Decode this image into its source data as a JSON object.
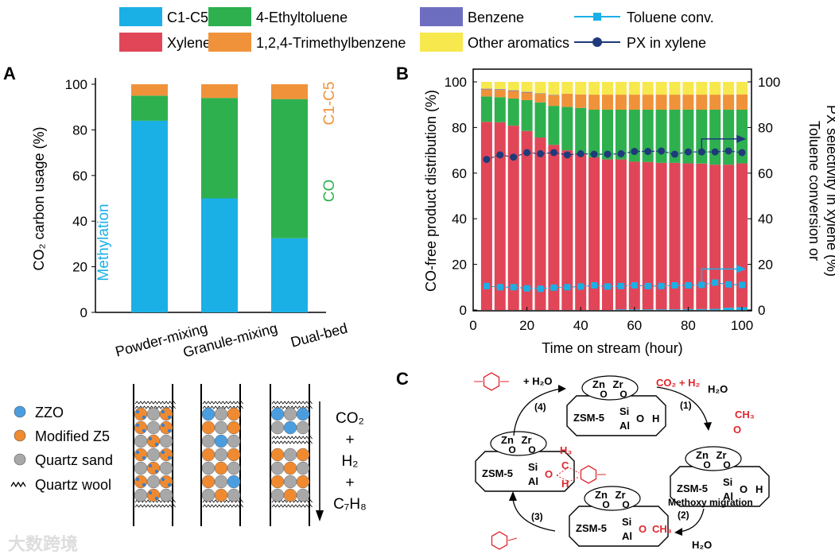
{
  "legend": {
    "items": [
      {
        "label": "C1-C5",
        "kind": "bar",
        "color": "#1ab0e6"
      },
      {
        "label": "4-Ethyltoluene",
        "kind": "bar",
        "color": "#2eb04f"
      },
      {
        "label": "Benzene",
        "kind": "bar",
        "color": "#6e6ec0"
      },
      {
        "label": "Toluene conv.",
        "kind": "line-square",
        "color": "#1ab0e6"
      },
      {
        "label": "Xylene",
        "kind": "bar",
        "color": "#e04658"
      },
      {
        "label": "1,2,4-Trimethylbenzene",
        "kind": "bar",
        "color": "#f0923a"
      },
      {
        "label": "Other aromatics",
        "kind": "bar",
        "color": "#f7e84e"
      },
      {
        "label": "PX in xylene",
        "kind": "line-circle",
        "color": "#1f3a7a"
      }
    ]
  },
  "chart_data": [
    {
      "panel": "A",
      "type": "bar",
      "stacked": true,
      "ylabel": "CO₂ carbon usage (%)",
      "ylim": [
        0,
        100
      ],
      "yticks": [
        0,
        20,
        40,
        60,
        80,
        100
      ],
      "categories": [
        "Powder-mixing",
        "Granule-mixing",
        "Dual-bed"
      ],
      "series": [
        {
          "name": "Methylation",
          "color": "#1ab0e6",
          "values": [
            84,
            50,
            32.5
          ]
        },
        {
          "name": "CO",
          "color": "#2eb04f",
          "values": [
            11,
            44,
            61
          ]
        },
        {
          "name": "C1-C5",
          "color": "#f0923a",
          "values": [
            5,
            6,
            6.5
          ]
        }
      ]
    },
    {
      "panel": "B",
      "type": "bar",
      "stacked": true,
      "xlabel": "Time on stream (hour)",
      "ylabel": "CO-free product distribution (%)",
      "ylabel_right": [
        "Toluene conversion or",
        "PX selectivity in xylene (%)"
      ],
      "xlim": [
        0,
        100
      ],
      "ylim": [
        0,
        100
      ],
      "xticks": [
        0,
        20,
        40,
        60,
        80,
        100
      ],
      "yticks": [
        0,
        20,
        40,
        60,
        80,
        100
      ],
      "x": [
        5,
        10,
        15,
        20,
        25,
        30,
        35,
        40,
        45,
        50,
        55,
        60,
        65,
        70,
        75,
        80,
        85,
        90,
        95,
        100
      ],
      "series": [
        {
          "name": "C1-C5",
          "color": "#1ab0e6",
          "values": [
            0,
            0,
            0,
            0,
            0,
            0,
            0,
            0,
            0,
            0,
            0.3,
            0.3,
            0.3,
            0.3,
            0.3,
            0.4,
            0.4,
            0.5,
            1,
            1.2
          ]
        },
        {
          "name": "Xylene",
          "color": "#e04658",
          "values": [
            82.5,
            82.3,
            80.8,
            78.5,
            75.6,
            72.4,
            70,
            68.6,
            66.9,
            66,
            65.7,
            64.7,
            64.6,
            64.2,
            64.2,
            63.9,
            63.8,
            63.2,
            62.7,
            63.1
          ]
        },
        {
          "name": "4-Ethyltoluene",
          "color": "#2eb04f",
          "values": [
            11.1,
            11,
            11.9,
            13.5,
            15.4,
            17.1,
            19,
            20,
            20.9,
            21.8,
            21.8,
            22.8,
            22.9,
            23.3,
            23.3,
            23.5,
            23.6,
            24.1,
            24.1,
            23.5
          ]
        },
        {
          "name": "1,2,4-Trimethylbenzene",
          "color": "#f0923a",
          "values": [
            3.1,
            3.2,
            3.3,
            3.3,
            3.8,
            4.6,
            5.8,
            5.9,
            6.6,
            6.6,
            6.6,
            6.6,
            6.6,
            6.6,
            6.6,
            6.6,
            6.6,
            6.6,
            6.6,
            6.7
          ]
        },
        {
          "name": "Benzene",
          "color": "#6e6ec0",
          "values": [
            0.3,
            0.3,
            0.3,
            0.3,
            0.2,
            0.2,
            0,
            0,
            0,
            0,
            0,
            0,
            0,
            0,
            0,
            0,
            0,
            0,
            0,
            0
          ]
        },
        {
          "name": "Other aromatics",
          "color": "#f7e84e",
          "values": [
            3,
            3.2,
            3.7,
            4.4,
            5,
            5.7,
            5.2,
            5.5,
            5.6,
            5.6,
            5.6,
            5.6,
            5.6,
            5.6,
            5.6,
            5.6,
            5.6,
            5.6,
            5.6,
            5.5
          ]
        }
      ],
      "lines": [
        {
          "name": "Toluene conv.",
          "axis": "right",
          "marker": "square",
          "color": "#1ab0e6",
          "values": [
            10.5,
            10,
            10,
            9.5,
            9.3,
            9.8,
            10,
            10.3,
            10.8,
            10.3,
            10.5,
            10.8,
            10.5,
            10.5,
            10.8,
            10.8,
            11,
            12,
            11.2,
            11
          ]
        },
        {
          "name": "PX in xylene",
          "axis": "right",
          "marker": "circle",
          "color": "#1f3a7a",
          "values": [
            66,
            68,
            67,
            69,
            68.5,
            69,
            68,
            68.5,
            68.3,
            68.3,
            68.5,
            69.5,
            69.5,
            69.7,
            68.3,
            69.3,
            69.3,
            69.3,
            69.7,
            69
          ]
        }
      ]
    }
  ],
  "panels": {
    "a": "A",
    "b": "B",
    "c": "C"
  },
  "reactor": {
    "legend": [
      "ZZO",
      "Modified Z5",
      "Quartz sand",
      "Quartz wool"
    ],
    "feed": [
      "CO₂",
      "+",
      "H₂",
      "+",
      "C₇H₈"
    ]
  },
  "mechanism": {
    "catalyst": {
      "zsm": "ZSM-5",
      "zn": "Zn",
      "zr": "Zr",
      "si": "Si",
      "al": "Al",
      "o": "O",
      "h": "H"
    },
    "steps": [
      "(1)",
      "(2)",
      "(3)",
      "(4)"
    ],
    "co2_h2": "CO₂ + H₂",
    "h2o": "H₂O",
    "plus_h2o": "+ H₂O",
    "ch3": "CH₃",
    "h3": "H₃",
    "c": "C",
    "methoxy_migration": "Methoxy migration"
  },
  "watermark": "大数跨境"
}
